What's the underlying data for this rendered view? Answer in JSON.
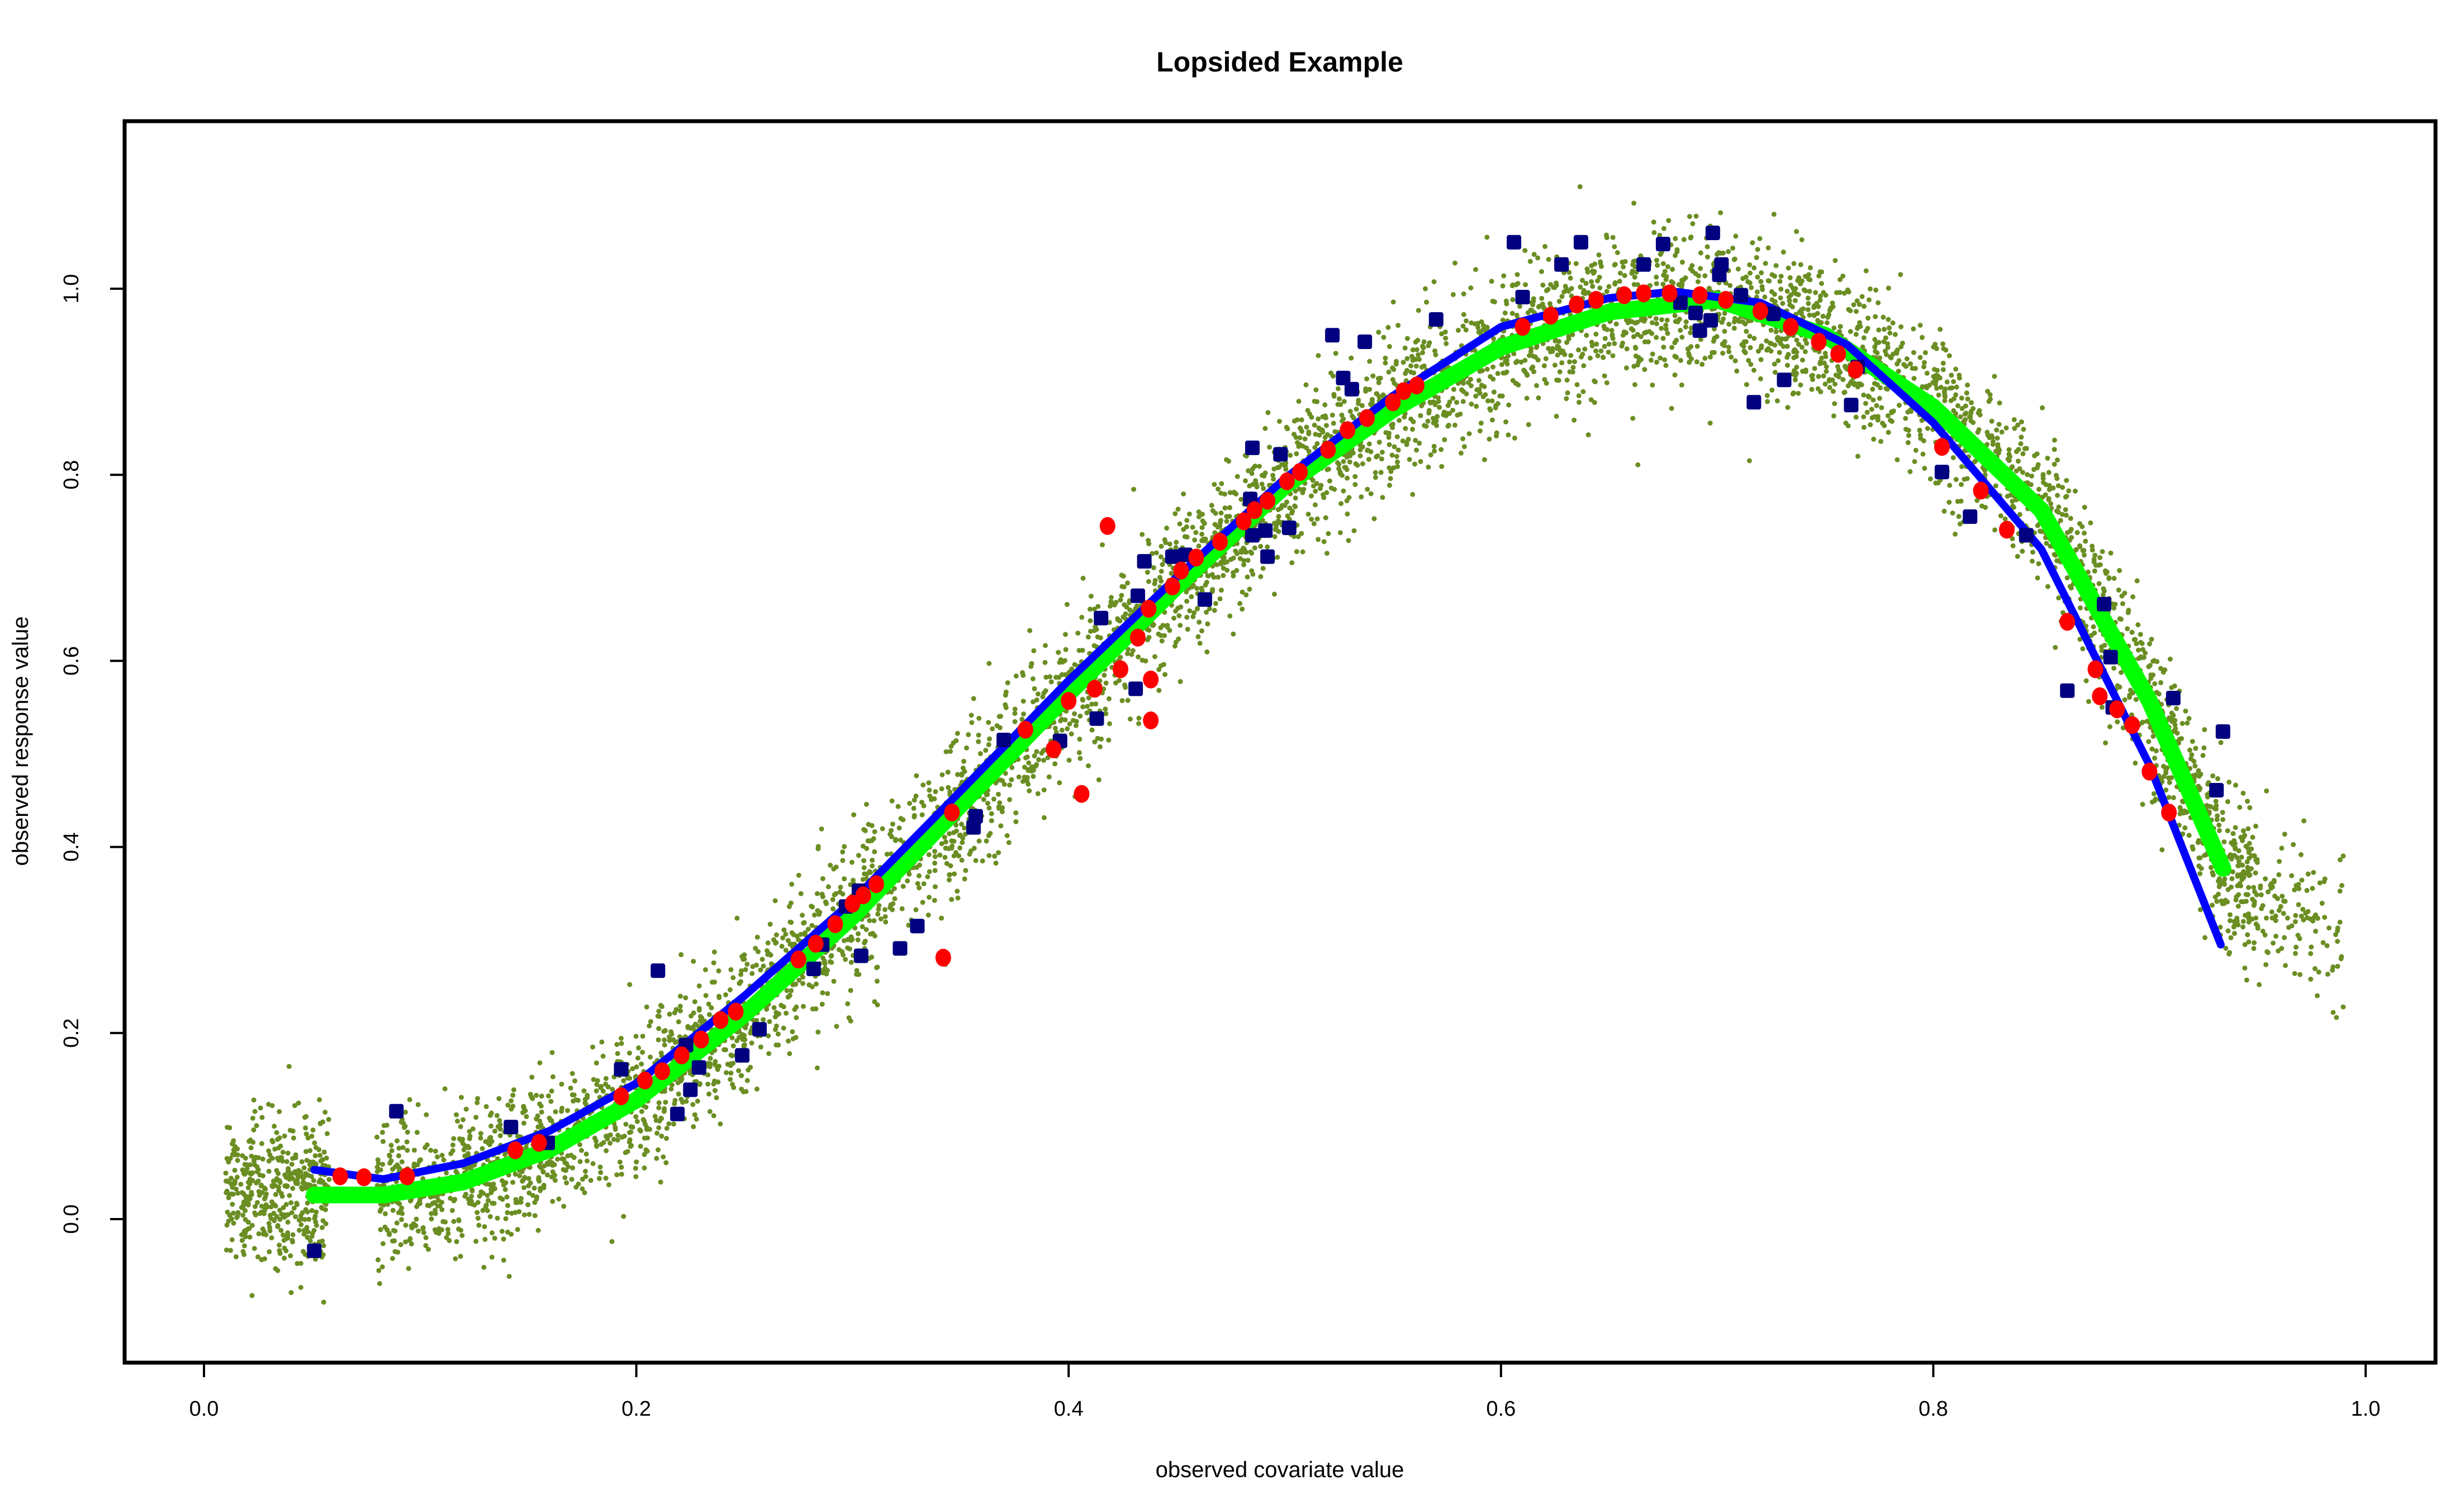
{
  "chart_data": {
    "type": "scatter",
    "title": "Lopsided Example",
    "xlabel": "observed covariate value",
    "ylabel": "observed response value",
    "xlim": [
      -0.04,
      1.03
    ],
    "ylim": [
      -0.14,
      1.16
    ],
    "xticks": [
      "0.0",
      "0.2",
      "0.4",
      "0.6",
      "0.8",
      "1.0"
    ],
    "yticks": [
      "0.0",
      "0.2",
      "0.4",
      "0.6",
      "0.8",
      "1.0"
    ],
    "grid": false,
    "legend": "none",
    "colors": {
      "cloud": "#6b8e23",
      "green_curve": "#00ff00",
      "blue_curve": "#0000ff",
      "red_points": "#ff0000",
      "navy_points": "#000080"
    },
    "green_curve": [
      [
        0.051,
        0.026
      ],
      [
        0.083,
        0.026
      ],
      [
        0.12,
        0.04
      ],
      [
        0.16,
        0.075
      ],
      [
        0.2,
        0.128
      ],
      [
        0.25,
        0.22
      ],
      [
        0.3,
        0.325
      ],
      [
        0.35,
        0.445
      ],
      [
        0.4,
        0.565
      ],
      [
        0.45,
        0.68
      ],
      [
        0.5,
        0.788
      ],
      [
        0.55,
        0.87
      ],
      [
        0.6,
        0.937
      ],
      [
        0.65,
        0.975
      ],
      [
        0.7,
        0.988
      ],
      [
        0.75,
        0.95
      ],
      [
        0.8,
        0.873
      ],
      [
        0.85,
        0.762
      ],
      [
        0.9,
        0.557
      ],
      [
        0.934,
        0.377
      ]
    ],
    "blue_curve": [
      [
        0.051,
        0.053
      ],
      [
        0.083,
        0.043
      ],
      [
        0.12,
        0.06
      ],
      [
        0.16,
        0.095
      ],
      [
        0.2,
        0.146
      ],
      [
        0.25,
        0.24
      ],
      [
        0.3,
        0.342
      ],
      [
        0.35,
        0.46
      ],
      [
        0.4,
        0.579
      ],
      [
        0.45,
        0.69
      ],
      [
        0.5,
        0.796
      ],
      [
        0.55,
        0.885
      ],
      [
        0.6,
        0.959
      ],
      [
        0.65,
        0.99
      ],
      [
        0.68,
        0.997
      ],
      [
        0.72,
        0.985
      ],
      [
        0.76,
        0.94
      ],
      [
        0.8,
        0.856
      ],
      [
        0.85,
        0.72
      ],
      [
        0.9,
        0.488
      ],
      [
        0.933,
        0.295
      ]
    ],
    "red_points": [
      [
        0.063,
        0.046
      ],
      [
        0.074,
        0.045
      ],
      [
        0.094,
        0.046
      ],
      [
        0.144,
        0.074
      ],
      [
        0.155,
        0.082
      ],
      [
        0.193,
        0.132
      ],
      [
        0.204,
        0.149
      ],
      [
        0.212,
        0.159
      ],
      [
        0.221,
        0.176
      ],
      [
        0.23,
        0.193
      ],
      [
        0.239,
        0.214
      ],
      [
        0.246,
        0.223
      ],
      [
        0.275,
        0.279
      ],
      [
        0.283,
        0.296
      ],
      [
        0.292,
        0.317
      ],
      [
        0.3,
        0.339
      ],
      [
        0.305,
        0.348
      ],
      [
        0.311,
        0.36
      ],
      [
        0.346,
        0.437
      ],
      [
        0.342,
        0.281
      ],
      [
        0.38,
        0.526
      ],
      [
        0.393,
        0.505
      ],
      [
        0.4,
        0.557
      ],
      [
        0.406,
        0.457
      ],
      [
        0.412,
        0.57
      ],
      [
        0.418,
        0.745
      ],
      [
        0.424,
        0.591
      ],
      [
        0.432,
        0.625
      ],
      [
        0.437,
        0.656
      ],
      [
        0.438,
        0.536
      ],
      [
        0.438,
        0.58
      ],
      [
        0.448,
        0.68
      ],
      [
        0.452,
        0.697
      ],
      [
        0.459,
        0.711
      ],
      [
        0.47,
        0.728
      ],
      [
        0.481,
        0.75
      ],
      [
        0.486,
        0.762
      ],
      [
        0.492,
        0.772
      ],
      [
        0.501,
        0.793
      ],
      [
        0.507,
        0.803
      ],
      [
        0.52,
        0.827
      ],
      [
        0.529,
        0.848
      ],
      [
        0.538,
        0.861
      ],
      [
        0.55,
        0.878
      ],
      [
        0.555,
        0.89
      ],
      [
        0.561,
        0.896
      ],
      [
        0.61,
        0.959
      ],
      [
        0.623,
        0.971
      ],
      [
        0.635,
        0.983
      ],
      [
        0.644,
        0.988
      ],
      [
        0.657,
        0.993
      ],
      [
        0.666,
        0.995
      ],
      [
        0.678,
        0.995
      ],
      [
        0.692,
        0.993
      ],
      [
        0.704,
        0.988
      ],
      [
        0.72,
        0.976
      ],
      [
        0.734,
        0.959
      ],
      [
        0.747,
        0.943
      ],
      [
        0.756,
        0.93
      ],
      [
        0.764,
        0.913
      ],
      [
        0.804,
        0.83
      ],
      [
        0.822,
        0.783
      ],
      [
        0.834,
        0.741
      ],
      [
        0.862,
        0.642
      ],
      [
        0.875,
        0.591
      ],
      [
        0.877,
        0.562
      ],
      [
        0.885,
        0.548
      ],
      [
        0.892,
        0.531
      ],
      [
        0.9,
        0.481
      ],
      [
        0.909,
        0.437
      ]
    ],
    "navy_points": [
      [
        0.051,
        -0.034
      ],
      [
        0.089,
        0.116
      ],
      [
        0.142,
        0.099
      ],
      [
        0.159,
        0.082
      ],
      [
        0.193,
        0.161
      ],
      [
        0.21,
        0.267
      ],
      [
        0.219,
        0.113
      ],
      [
        0.223,
        0.187
      ],
      [
        0.225,
        0.139
      ],
      [
        0.229,
        0.163
      ],
      [
        0.249,
        0.176
      ],
      [
        0.257,
        0.204
      ],
      [
        0.282,
        0.269
      ],
      [
        0.286,
        0.295
      ],
      [
        0.297,
        0.336
      ],
      [
        0.303,
        0.353
      ],
      [
        0.304,
        0.283
      ],
      [
        0.322,
        0.291
      ],
      [
        0.33,
        0.315
      ],
      [
        0.356,
        0.421
      ],
      [
        0.357,
        0.433
      ],
      [
        0.37,
        0.515
      ],
      [
        0.396,
        0.514
      ],
      [
        0.413,
        0.538
      ],
      [
        0.415,
        0.646
      ],
      [
        0.431,
        0.57
      ],
      [
        0.432,
        0.67
      ],
      [
        0.435,
        0.707
      ],
      [
        0.448,
        0.712
      ],
      [
        0.454,
        0.714
      ],
      [
        0.463,
        0.666
      ],
      [
        0.484,
        0.774
      ],
      [
        0.485,
        0.829
      ],
      [
        0.485,
        0.735
      ],
      [
        0.491,
        0.74
      ],
      [
        0.492,
        0.712
      ],
      [
        0.498,
        0.822
      ],
      [
        0.502,
        0.743
      ],
      [
        0.522,
        0.95
      ],
      [
        0.527,
        0.904
      ],
      [
        0.531,
        0.892
      ],
      [
        0.537,
        0.943
      ],
      [
        0.57,
        0.967
      ],
      [
        0.606,
        1.05
      ],
      [
        0.61,
        0.991
      ],
      [
        0.628,
        1.026
      ],
      [
        0.637,
        1.05
      ],
      [
        0.666,
        1.026
      ],
      [
        0.675,
        1.048
      ],
      [
        0.683,
        0.985
      ],
      [
        0.69,
        0.974
      ],
      [
        0.692,
        0.955
      ],
      [
        0.697,
        0.966
      ],
      [
        0.698,
        1.06
      ],
      [
        0.701,
        1.015
      ],
      [
        0.702,
        1.026
      ],
      [
        0.711,
        0.993
      ],
      [
        0.717,
        0.878
      ],
      [
        0.726,
        0.973
      ],
      [
        0.731,
        0.902
      ],
      [
        0.762,
        0.875
      ],
      [
        0.765,
        0.916
      ],
      [
        0.804,
        0.803
      ],
      [
        0.817,
        0.755
      ],
      [
        0.843,
        0.735
      ],
      [
        0.862,
        0.568
      ],
      [
        0.879,
        0.661
      ],
      [
        0.882,
        0.604
      ],
      [
        0.883,
        0.55
      ],
      [
        0.911,
        0.56
      ],
      [
        0.931,
        0.461
      ],
      [
        0.934,
        0.524
      ]
    ]
  }
}
